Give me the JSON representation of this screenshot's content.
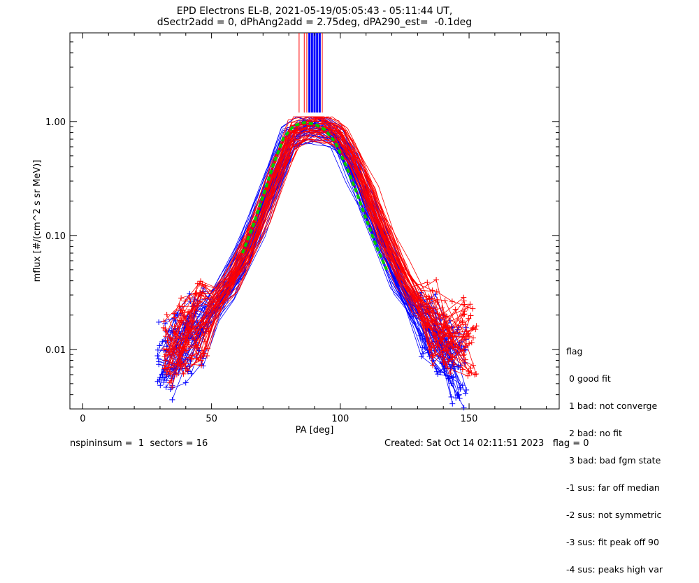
{
  "chart_data": {
    "type": "scatter",
    "title": "EPD Electrons EL-B, 2021-05-19/05:05:43 - 05:11:44 UT,",
    "subtitle": "dSectr2add = 0, dPhAng2add = 2.75deg, dPA290_est=  -0.1deg",
    "xlabel": "PA [deg]",
    "ylabel": "mflux [#/(cm^2 s sr MeV)]",
    "xlim": [
      -5,
      185
    ],
    "ylim": [
      0.003,
      6.0
    ],
    "yscale": "log",
    "grid": false,
    "x_ticks": [
      0,
      50,
      100,
      150
    ],
    "x_tick_labels": [
      "0",
      "50",
      "100",
      "150"
    ],
    "y_ticks": [
      0.01,
      0.1,
      1.0
    ],
    "y_tick_labels": [
      "0.01",
      "0.10",
      "1.00"
    ],
    "series_colors": [
      "#0000ff",
      "#ff0000",
      "#00cc00"
    ],
    "series": [
      {
        "color": "#0000ff",
        "marker": "+",
        "style": "line",
        "x": [
          32,
          38,
          44,
          50,
          56,
          62,
          68,
          74,
          80,
          86,
          92,
          98,
          104,
          110,
          116,
          122,
          128,
          134,
          140,
          146
        ],
        "y": [
          0.008,
          0.011,
          0.015,
          0.022,
          0.035,
          0.06,
          0.13,
          0.3,
          0.68,
          0.85,
          0.88,
          0.75,
          0.42,
          0.2,
          0.09,
          0.042,
          0.024,
          0.015,
          0.01,
          0.007
        ]
      },
      {
        "color": "#ff0000",
        "marker": "+",
        "style": "line",
        "x": [
          34,
          40,
          46,
          52,
          58,
          64,
          70,
          76,
          82,
          88,
          94,
          100,
          106,
          112,
          118,
          124,
          130,
          136,
          142,
          150
        ],
        "y": [
          0.01,
          0.013,
          0.018,
          0.026,
          0.04,
          0.075,
          0.16,
          0.38,
          0.8,
          0.92,
          0.9,
          0.8,
          0.48,
          0.22,
          0.1,
          0.05,
          0.028,
          0.018,
          0.013,
          0.013
        ]
      },
      {
        "color": "#00cc00",
        "marker": "none",
        "style": "dashed-fit",
        "x": [
          62,
          66,
          70,
          74,
          78,
          82,
          86,
          90,
          94,
          98,
          102,
          106,
          110,
          114,
          118
        ],
        "y": [
          0.07,
          0.12,
          0.22,
          0.42,
          0.72,
          0.92,
          0.98,
          0.95,
          0.85,
          0.66,
          0.42,
          0.25,
          0.14,
          0.08,
          0.05
        ]
      }
    ],
    "vertical_markers": {
      "blue_x": [
        88,
        89,
        90,
        91,
        92
      ],
      "red_x": [
        84,
        86,
        87,
        93
      ],
      "y_from": 1.2,
      "y_to": 6.0
    }
  },
  "legend": {
    "title": "flag",
    "items": [
      " 0 good fit",
      " 1 bad: not converge",
      " 2 bad: no fit",
      " 3 bad: bad fgm state",
      "-1 sus: far off median",
      "-2 sus: not symmetric",
      "-3 sus: fit peak off 90",
      "-4 sus: peaks high var"
    ]
  },
  "footer": {
    "left": "nspininsum =  1  sectors = 16",
    "right": "Created: Sat Oct 14 02:11:51 2023   flag = 0"
  }
}
